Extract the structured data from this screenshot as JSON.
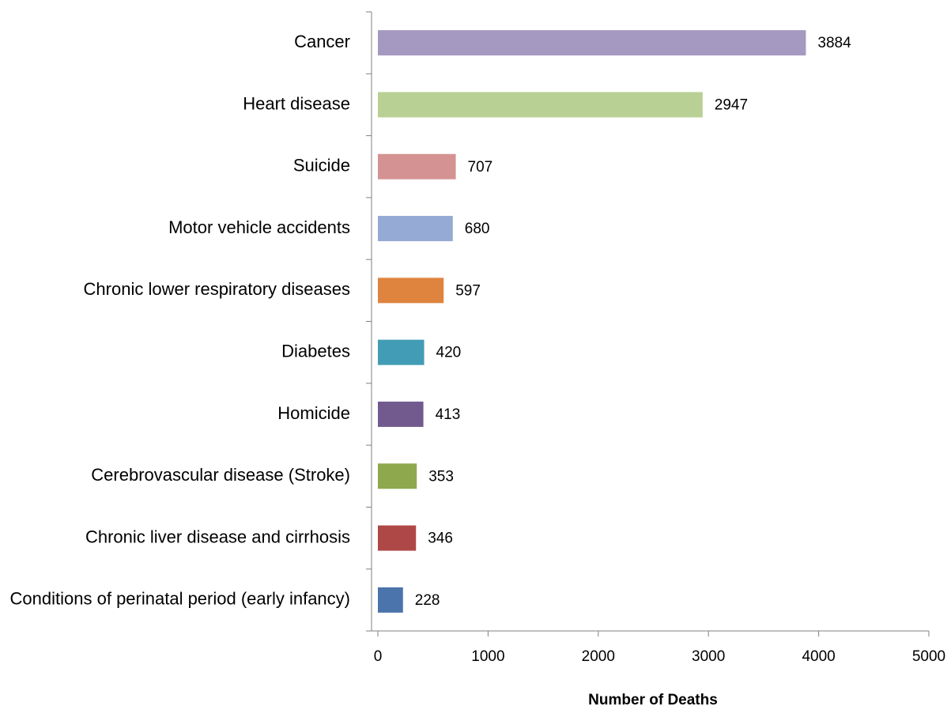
{
  "chart_data": {
    "type": "barh",
    "x_label": "Number of Deaths",
    "categories": [
      "Cancer",
      "Heart disease",
      "Suicide",
      "Motor vehicle accidents",
      "Chronic lower respiratory diseases",
      "Diabetes",
      "Homicide",
      "Cerebrovascular disease (Stroke)",
      "Chronic liver disease and cirrhosis",
      "Conditions of perinatal period (early infancy)"
    ],
    "values": [
      3884,
      2947,
      707,
      680,
      597,
      420,
      413,
      353,
      346,
      228
    ],
    "colors": [
      "#a599c1",
      "#b9d094",
      "#d49392",
      "#95aad4",
      "#de843f",
      "#439cb5",
      "#725a8f",
      "#8ea84e",
      "#ad4846",
      "#4a74ab"
    ],
    "xlim": [
      0,
      5000
    ],
    "xticks": [
      0,
      1000,
      2000,
      3000,
      4000,
      5000
    ],
    "grid": false
  }
}
